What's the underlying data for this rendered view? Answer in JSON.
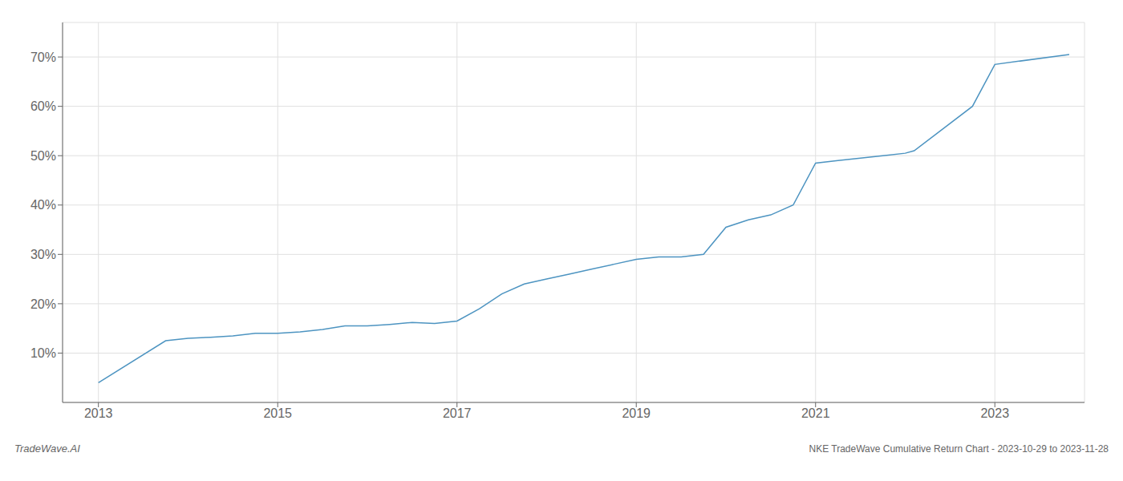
{
  "chart_data": {
    "type": "line",
    "title": "NKE TradeWave Cumulative Return Chart - 2023-10-29 to 2023-11-28",
    "annotations": [
      "TradeWave.AI"
    ],
    "x": [
      2013.0,
      2013.75,
      2014.0,
      2014.25,
      2014.5,
      2014.75,
      2015.0,
      2015.25,
      2015.5,
      2015.75,
      2016.0,
      2016.25,
      2016.5,
      2016.75,
      2017.0,
      2017.25,
      2017.5,
      2017.75,
      2018.0,
      2018.25,
      2018.5,
      2018.75,
      2019.0,
      2019.25,
      2019.5,
      2019.75,
      2020.0,
      2020.25,
      2020.5,
      2020.75,
      2021.0,
      2021.25,
      2021.5,
      2021.75,
      2022.0,
      2022.1,
      2022.75,
      2023.0,
      2023.83
    ],
    "values": [
      4.0,
      12.5,
      13.0,
      13.2,
      13.5,
      14.0,
      14.0,
      14.3,
      14.8,
      15.5,
      15.5,
      15.8,
      16.2,
      16.0,
      16.5,
      19.0,
      22.0,
      24.0,
      25.0,
      26.0,
      27.0,
      28.0,
      29.0,
      29.5,
      29.5,
      30.0,
      35.5,
      37.0,
      38.0,
      40.0,
      48.5,
      49.0,
      49.5,
      50.0,
      50.5,
      51.0,
      60.0,
      68.5,
      70.5
    ],
    "color": "#4d94c1",
    "xlim": [
      2012.6,
      2024.0
    ],
    "ylim": [
      0,
      77
    ],
    "xticks": [
      2013,
      2015,
      2017,
      2019,
      2021,
      2023
    ],
    "yticks": [
      {
        "value": 10,
        "label": "10%"
      },
      {
        "value": 20,
        "label": "20%"
      },
      {
        "value": 30,
        "label": "30%"
      },
      {
        "value": 40,
        "label": "40%"
      },
      {
        "value": 50,
        "label": "50%"
      },
      {
        "value": 60,
        "label": "60%"
      },
      {
        "value": 70,
        "label": "70%"
      }
    ],
    "grid": true
  }
}
